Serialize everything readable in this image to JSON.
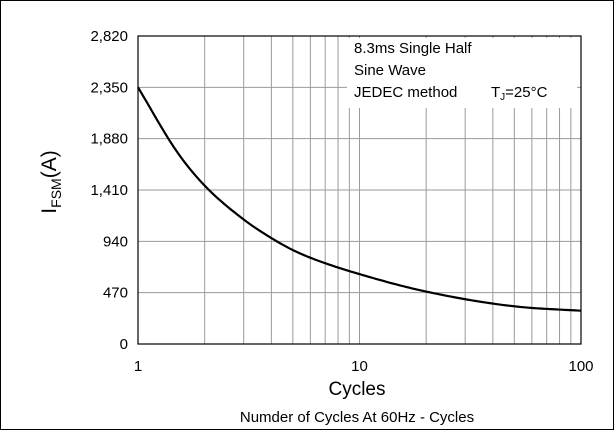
{
  "chart_data": {
    "type": "line",
    "x_scale": "log",
    "y_scale": "linear",
    "xlim": [
      1,
      100
    ],
    "ylim": [
      0,
      2820
    ],
    "x_ticks": [
      "1",
      "10",
      "100"
    ],
    "y_ticks": [
      "0",
      "470",
      "940",
      "1,410",
      "1,880",
      "2,350",
      "2,820"
    ],
    "y_tick_values": [
      0,
      470,
      940,
      1410,
      1880,
      2350,
      2820
    ],
    "x_tick_values": [
      1,
      10,
      100
    ],
    "grid": true,
    "xlabel": "Cycles",
    "ylabel_main": "I",
    "ylabel_sub": "FSM",
    "ylabel_unit": "(A)",
    "caption": "Numder of Cycles At 60Hz - Cycles",
    "annotation_lines": [
      "8.3ms Single Half",
      "Sine Wave",
      "JEDEC method"
    ],
    "annotation_temp_main": "T",
    "annotation_temp_sub": "J",
    "annotation_temp_value": "=25°C",
    "series": [
      {
        "color": "#000000",
        "x": [
          1,
          1.5,
          2,
          3,
          4,
          5,
          6,
          8,
          10,
          15,
          20,
          30,
          40,
          50,
          60,
          80,
          100
        ],
        "y": [
          2350,
          1760,
          1450,
          1140,
          970,
          860,
          790,
          700,
          640,
          540,
          480,
          410,
          370,
          345,
          330,
          315,
          305
        ]
      }
    ]
  }
}
